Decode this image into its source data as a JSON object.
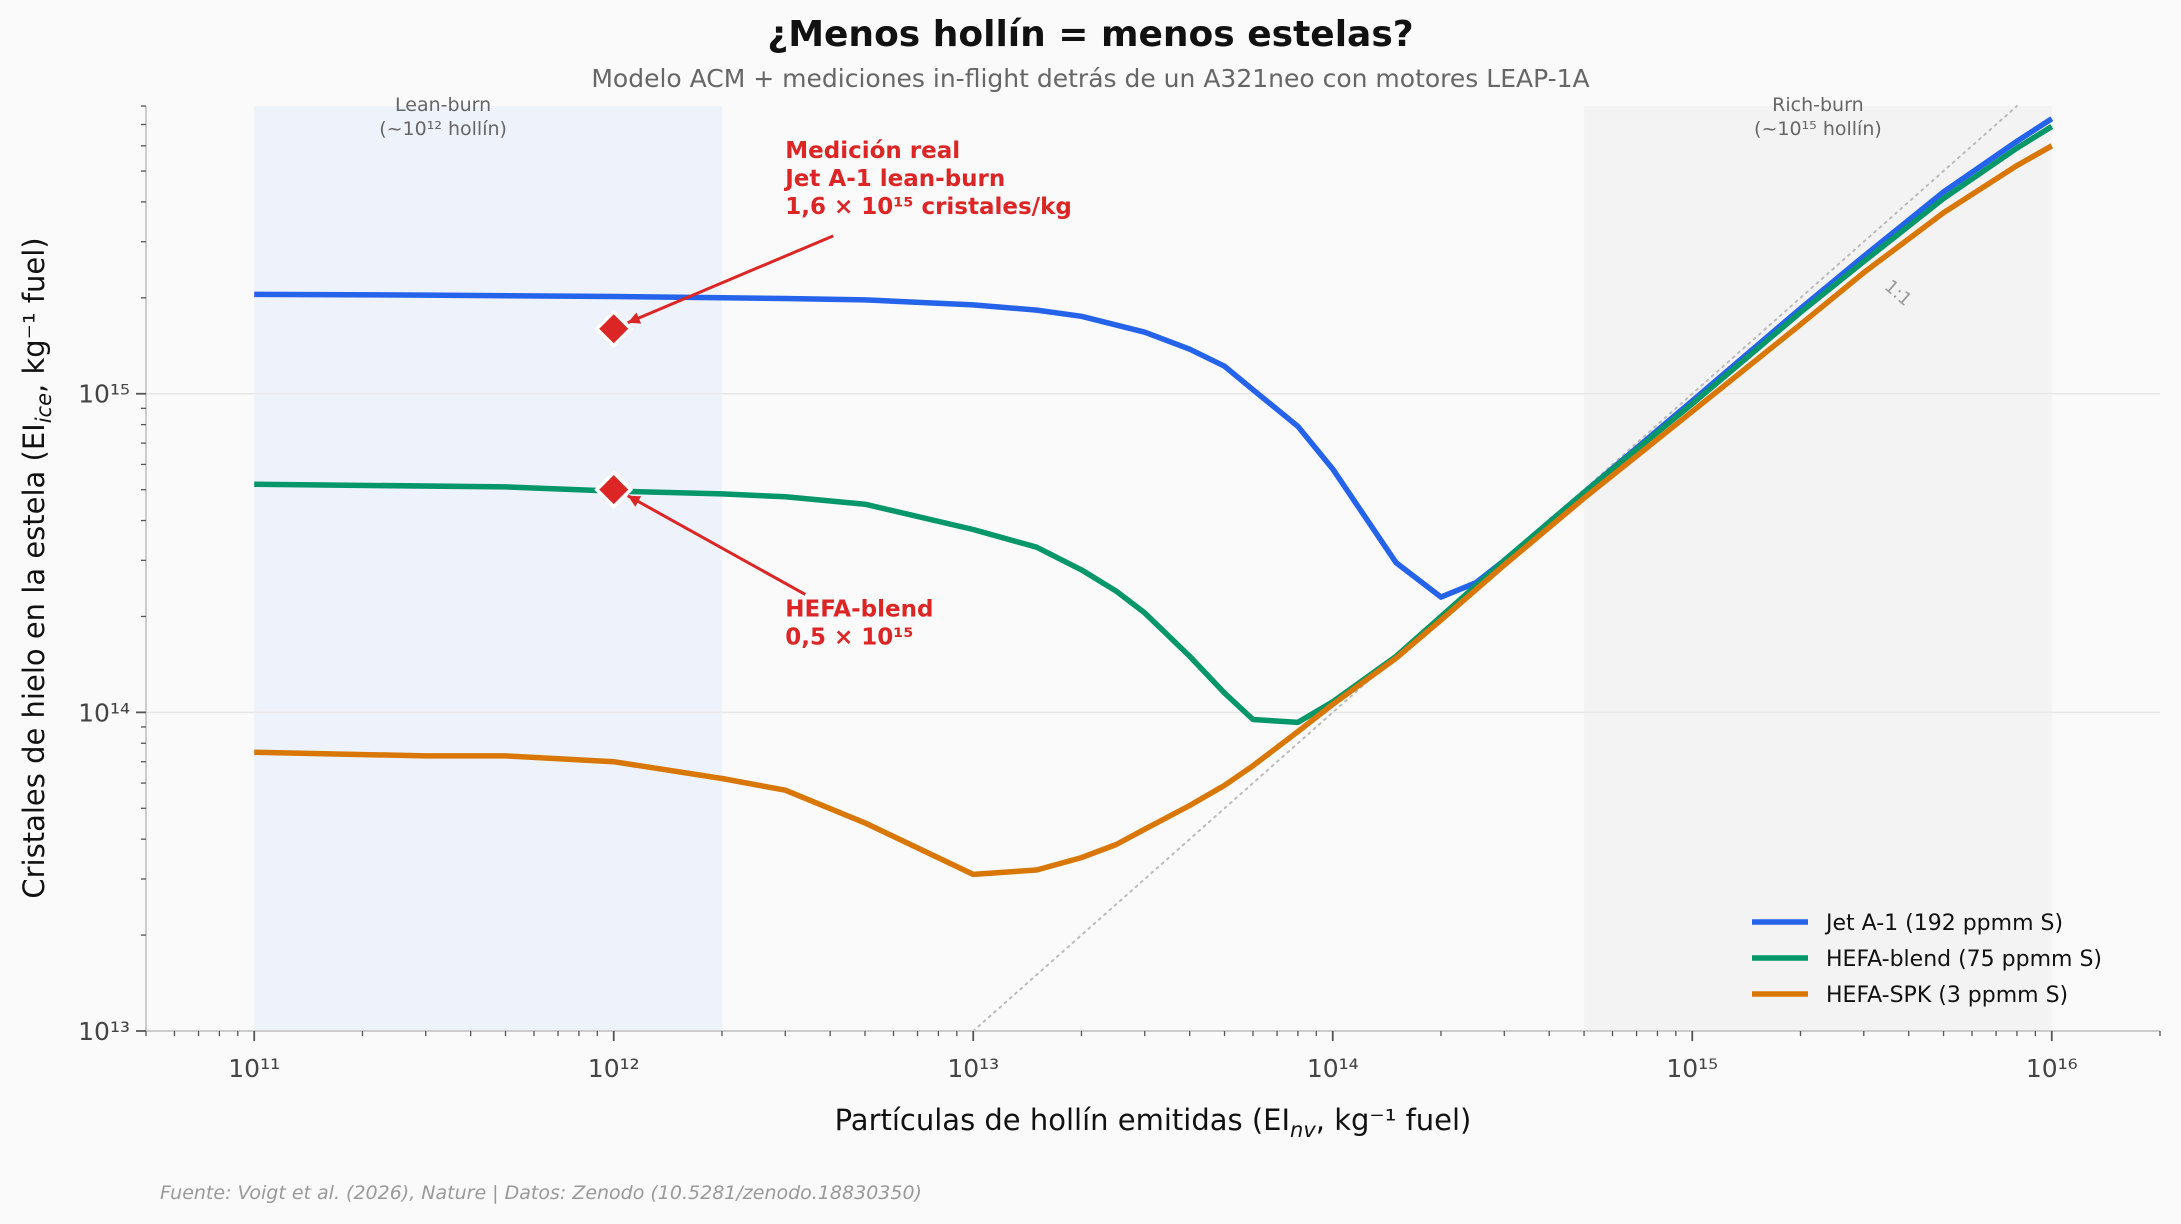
{
  "header": {
    "title": "¿Menos hollín = menos estelas?",
    "subtitle": "Modelo ACM + mediciones in-flight detrás de un A321neo con motores LEAP-1A"
  },
  "footer": {
    "source": "Fuente: Voigt et al. (2026), Nature | Datos: Zenodo (10.5281/zenodo.18830350)"
  },
  "colors": {
    "jet_a1": "#2563eb",
    "hefa_blend": "#059669",
    "hefa_spk": "#d97706",
    "annotation": "#dc2626",
    "lean_band": "#eef2fa",
    "rich_band": "#f3f3f3",
    "background": "#fafafa"
  },
  "chart_data": {
    "type": "line",
    "title": "¿Menos hollín = menos estelas?",
    "subtitle": "Modelo ACM + mediciones in-flight detrás de un A321neo con motores LEAP-1A",
    "xlabel": "Partículas de hollín emitidas (EI_nv, kg⁻¹ fuel)",
    "ylabel": "Cristales de hielo en la estela (EI_ice, kg⁻¹ fuel)",
    "xscale": "log",
    "yscale": "log",
    "xlim": [
      50000000000.0,
      2e+16
    ],
    "ylim": [
      10000000000000.0,
      8000000000000000.0
    ],
    "x_ticks": [
      "10¹¹",
      "10¹²",
      "10¹³",
      "10¹⁴",
      "10¹⁵",
      "10¹⁶"
    ],
    "y_ticks": [
      "10¹³",
      "10¹⁴",
      "10¹⁵"
    ],
    "grid": "horizontal major only",
    "legend_position": "lower right",
    "series": [
      {
        "name": "Jet A-1 (192 ppmm S)",
        "color": "#2563eb",
        "x": [
          100000000000.0,
          300000000000.0,
          1000000000000.0,
          2000000000000.0,
          3000000000000.0,
          5000000000000.0,
          10000000000000.0,
          15000000000000.0,
          20000000000000.0,
          30000000000000.0,
          40000000000000.0,
          50000000000000.0,
          60000000000000.0,
          80000000000000.0,
          100000000000000.0,
          150000000000000.0,
          200000000000000.0,
          250000000000000.0,
          300000000000000.0,
          500000000000000.0,
          1000000000000000.0,
          2000000000000000.0,
          3000000000000000.0,
          5000000000000000.0,
          8000000000000000.0,
          1e+16
        ],
        "y": [
          2050000000000000.0,
          2040000000000000.0,
          2020000000000000.0,
          2000000000000000.0,
          1990000000000000.0,
          1970000000000000.0,
          1900000000000000.0,
          1830000000000000.0,
          1750000000000000.0,
          1560000000000000.0,
          1380000000000000.0,
          1220000000000000.0,
          1030000000000000.0,
          790000000000000.0,
          580000000000000.0,
          295000000000000.0,
          230000000000000.0,
          255000000000000.0,
          300000000000000.0,
          490000000000000.0,
          950000000000000.0,
          1850000000000000.0,
          2700000000000000.0,
          4300000000000000.0,
          6200000000000000.0,
          7300000000000000.0
        ]
      },
      {
        "name": "HEFA-blend (75 ppmm S)",
        "color": "#059669",
        "x": [
          100000000000.0,
          500000000000.0,
          1000000000000.0,
          2000000000000.0,
          3000000000000.0,
          5000000000000.0,
          10000000000000.0,
          15000000000000.0,
          20000000000000.0,
          25000000000000.0,
          30000000000000.0,
          40000000000000.0,
          50000000000000.0,
          60000000000000.0,
          80000000000000.0,
          100000000000000.0,
          150000000000000.0,
          200000000000000.0,
          300000000000000.0,
          500000000000000.0,
          1000000000000000.0,
          2000000000000000.0,
          3000000000000000.0,
          5000000000000000.0,
          8000000000000000.0,
          1e+16
        ],
        "y": [
          520000000000000.0,
          510000000000000.0,
          495000000000000.0,
          485000000000000.0,
          475000000000000.0,
          450000000000000.0,
          375000000000000.0,
          330000000000000.0,
          280000000000000.0,
          240000000000000.0,
          205000000000000.0,
          150000000000000.0,
          115000000000000.0,
          95000000000000.0,
          93000000000000.0,
          108000000000000.0,
          150000000000000.0,
          200000000000000.0,
          300000000000000.0,
          490000000000000.0,
          930000000000000.0,
          1800000000000000.0,
          2600000000000000.0,
          4100000000000000.0,
          5900000000000000.0,
          6900000000000000.0
        ]
      },
      {
        "name": "HEFA-SPK (3 ppmm S)",
        "color": "#d97706",
        "x": [
          100000000000.0,
          300000000000.0,
          500000000000.0,
          1000000000000.0,
          2000000000000.0,
          3000000000000.0,
          5000000000000.0,
          10000000000000.0,
          15000000000000.0,
          20000000000000.0,
          25000000000000.0,
          30000000000000.0,
          40000000000000.0,
          50000000000000.0,
          60000000000000.0,
          80000000000000.0,
          100000000000000.0,
          150000000000000.0,
          200000000000000.0,
          300000000000000.0,
          500000000000000.0,
          1000000000000000.0,
          2000000000000000.0,
          3000000000000000.0,
          5000000000000000.0,
          8000000000000000.0,
          1e+16
        ],
        "y": [
          75000000000000.0,
          73000000000000.0,
          73000000000000.0,
          70000000000000.0,
          62000000000000.0,
          57000000000000.0,
          45000000000000.0,
          31000000000000.0,
          32000000000000.0,
          35000000000000.0,
          38500000000000.0,
          43000000000000.0,
          51000000000000.0,
          59000000000000.0,
          68000000000000.0,
          87000000000000.0,
          106000000000000.0,
          148000000000000.0,
          195000000000000.0,
          290000000000000.0,
          470000000000000.0,
          880000000000000.0,
          1650000000000000.0,
          2400000000000000.0,
          3700000000000000.0,
          5200000000000000.0,
          6000000000000000.0
        ]
      }
    ],
    "reference_line": {
      "label": "1:1",
      "x": [
        10000000000000.0,
        8000000000000000.0
      ],
      "y": [
        10000000000000.0,
        8000000000000000.0
      ],
      "style": "dotted",
      "color": "#bbbbbb"
    },
    "shaded_regions": [
      {
        "label_line1": "Lean-burn",
        "label_line2": "(~10¹² hollín)",
        "x_from": 100000000000.0,
        "x_to": 2000000000000.0,
        "color": "#eef2fa"
      },
      {
        "label_line1": "Rich-burn",
        "label_line2": "(~10¹⁵ hollín)",
        "x_from": 500000000000000.0,
        "x_to": 1e+16,
        "color": "#f3f3f3"
      }
    ],
    "measurements": [
      {
        "x": 1000000000000.0,
        "y": 1600000000000000.0,
        "series": "Jet A-1",
        "marker": "diamond",
        "color": "#dc2626"
      },
      {
        "x": 1000000000000.0,
        "y": 500000000000000.0,
        "series": "HEFA-blend",
        "marker": "diamond",
        "color": "#dc2626"
      }
    ],
    "annotations": [
      {
        "lines": [
          "Medición real",
          "Jet A-1 lean-burn",
          "1,6 × 10¹⁵ cristales/kg"
        ],
        "text_x": 3000000000000.0,
        "text_y": 5500000000000000.0,
        "arrow_to": [
          1000000000000.0,
          1600000000000000.0
        ],
        "color": "#dc2626"
      },
      {
        "lines": [
          "HEFA-blend",
          "0,5 × 10¹⁵"
        ],
        "text_x": 3000000000000.0,
        "text_y": 200000000000000.0,
        "arrow_to": [
          1000000000000.0,
          500000000000000.0
        ],
        "color": "#dc2626"
      }
    ]
  }
}
